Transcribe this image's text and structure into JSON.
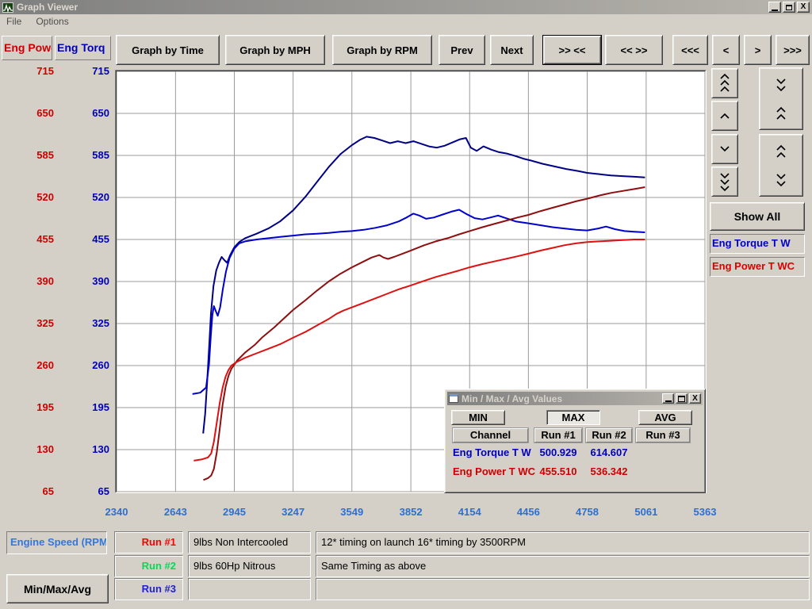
{
  "window": {
    "title": "Graph Viewer",
    "menu": [
      "File",
      "Options"
    ]
  },
  "channel_axes": {
    "power_label": "Eng Powe",
    "power_color": "#cc0000",
    "torque_label": "Eng Torq",
    "torque_color": "#0000bb"
  },
  "toolbar": [
    "Graph by Time",
    "Graph by MPH",
    "Graph by RPM",
    "Prev",
    "Next",
    ">> <<",
    "<< >>",
    "<<<",
    "<",
    ">",
    ">>>"
  ],
  "right_panel": {
    "show_all": "Show All",
    "torque_legend": "Eng Torque T W",
    "torque_color": "#0000cc",
    "power_legend": "Eng Power T WC",
    "power_color": "#dd0000"
  },
  "dialog": {
    "title": "Min / Max / Avg Values",
    "buttons": [
      "MIN",
      "MAX",
      "AVG"
    ],
    "active_button": "MAX",
    "headers": [
      "Channel",
      "Run #1",
      "Run #2",
      "Run #3"
    ],
    "rows": [
      {
        "channel": "Eng Torque T W",
        "color": "#0000bb",
        "run1": "500.929",
        "run2": "614.607",
        "run3": ""
      },
      {
        "channel": "Eng Power T WC",
        "color": "#cc0000",
        "run1": "455.510",
        "run2": "536.342",
        "run3": ""
      }
    ]
  },
  "bottom": {
    "x_channel_label": "Engine Speed (RPM",
    "x_channel_color": "#3377dd",
    "minmax_button": "Min/Max/Avg",
    "runs": [
      {
        "label": "Run #1",
        "color": "#ff0000",
        "desc": "9lbs Non Intercooled",
        "comment": "12* timing on launch 16* timing by 3500RPM"
      },
      {
        "label": "Run #2",
        "color": "#00dd55",
        "desc": "9lbs 60Hp Nitrous",
        "comment": "Same Timing as above"
      },
      {
        "label": "Run #3",
        "color": "#2222cc",
        "desc": "",
        "comment": ""
      }
    ]
  },
  "chart_data": {
    "type": "line",
    "xlabel": "Engine Speed (RPM)",
    "xlim": [
      2340,
      5363
    ],
    "ylim": [
      65,
      715
    ],
    "x_ticks": [
      2340,
      2643,
      2945,
      3247,
      3549,
      3852,
      4154,
      4456,
      4758,
      5061,
      5363
    ],
    "y_ticks": [
      65,
      130,
      195,
      260,
      325,
      390,
      455,
      520,
      585,
      650,
      715
    ],
    "x_tick_color": "#2d6fd0",
    "y_tick_color_power": "#cc0000",
    "y_tick_color_torque": "#0000bb",
    "grid_color": "#9b9b9b",
    "grid": true,
    "series": [
      {
        "name": "Run #2 Eng Torque T W",
        "color": "#000087",
        "max": 614.607,
        "points": [
          [
            2785,
            155
          ],
          [
            2795,
            185
          ],
          [
            2805,
            232
          ],
          [
            2815,
            286
          ],
          [
            2825,
            340
          ],
          [
            2838,
            383
          ],
          [
            2852,
            407
          ],
          [
            2866,
            419
          ],
          [
            2880,
            428
          ],
          [
            2894,
            423
          ],
          [
            2908,
            419
          ],
          [
            2924,
            431
          ],
          [
            2945,
            443
          ],
          [
            2970,
            451
          ],
          [
            3000,
            457
          ],
          [
            3060,
            464
          ],
          [
            3120,
            472
          ],
          [
            3180,
            483
          ],
          [
            3247,
            500
          ],
          [
            3310,
            521
          ],
          [
            3370,
            544
          ],
          [
            3430,
            567
          ],
          [
            3490,
            587
          ],
          [
            3549,
            601
          ],
          [
            3590,
            609
          ],
          [
            3625,
            614
          ],
          [
            3665,
            612
          ],
          [
            3705,
            608
          ],
          [
            3745,
            604
          ],
          [
            3785,
            607
          ],
          [
            3825,
            604
          ],
          [
            3865,
            607
          ],
          [
            3905,
            603
          ],
          [
            3945,
            599
          ],
          [
            3985,
            597
          ],
          [
            4025,
            600
          ],
          [
            4065,
            605
          ],
          [
            4105,
            610
          ],
          [
            4135,
            612
          ],
          [
            4160,
            597
          ],
          [
            4190,
            592
          ],
          [
            4225,
            599
          ],
          [
            4265,
            594
          ],
          [
            4305,
            590
          ],
          [
            4345,
            588
          ],
          [
            4390,
            584
          ],
          [
            4430,
            580
          ],
          [
            4470,
            577
          ],
          [
            4530,
            572
          ],
          [
            4590,
            568
          ],
          [
            4650,
            564
          ],
          [
            4710,
            561
          ],
          [
            4758,
            558
          ],
          [
            4820,
            556
          ],
          [
            4880,
            554
          ],
          [
            4940,
            553
          ],
          [
            5000,
            552
          ],
          [
            5055,
            551
          ]
        ]
      },
      {
        "name": "Run #1 Eng Torque T W",
        "color": "#0000cc",
        "max": 500.929,
        "points": [
          [
            2730,
            216
          ],
          [
            2770,
            218
          ],
          [
            2800,
            226
          ],
          [
            2815,
            262
          ],
          [
            2824,
            305
          ],
          [
            2832,
            338
          ],
          [
            2840,
            352
          ],
          [
            2850,
            344
          ],
          [
            2860,
            337
          ],
          [
            2872,
            350
          ],
          [
            2886,
            378
          ],
          [
            2902,
            405
          ],
          [
            2920,
            426
          ],
          [
            2945,
            441
          ],
          [
            2970,
            449
          ],
          [
            3000,
            452
          ],
          [
            3060,
            455
          ],
          [
            3120,
            457
          ],
          [
            3180,
            459
          ],
          [
            3247,
            461
          ],
          [
            3310,
            463
          ],
          [
            3370,
            464
          ],
          [
            3430,
            465
          ],
          [
            3490,
            467
          ],
          [
            3549,
            468
          ],
          [
            3610,
            470
          ],
          [
            3670,
            473
          ],
          [
            3730,
            477
          ],
          [
            3790,
            483
          ],
          [
            3830,
            489
          ],
          [
            3865,
            495
          ],
          [
            3895,
            492
          ],
          [
            3930,
            487
          ],
          [
            3970,
            489
          ],
          [
            4010,
            493
          ],
          [
            4060,
            498
          ],
          [
            4100,
            501
          ],
          [
            4140,
            494
          ],
          [
            4180,
            488
          ],
          [
            4220,
            486
          ],
          [
            4260,
            489
          ],
          [
            4300,
            492
          ],
          [
            4340,
            488
          ],
          [
            4390,
            483
          ],
          [
            4456,
            480
          ],
          [
            4520,
            477
          ],
          [
            4580,
            474
          ],
          [
            4640,
            472
          ],
          [
            4700,
            470
          ],
          [
            4758,
            469
          ],
          [
            4815,
            472
          ],
          [
            4855,
            475
          ],
          [
            4900,
            471
          ],
          [
            4950,
            468
          ],
          [
            5000,
            467
          ],
          [
            5055,
            466
          ]
        ]
      },
      {
        "name": "Run #2 Eng Power T WC",
        "color": "#8e0f0f",
        "max": 536.342,
        "points": [
          [
            2786,
            83
          ],
          [
            2810,
            86
          ],
          [
            2826,
            90
          ],
          [
            2840,
            100
          ],
          [
            2855,
            126
          ],
          [
            2870,
            162
          ],
          [
            2885,
            200
          ],
          [
            2900,
            227
          ],
          [
            2915,
            244
          ],
          [
            2930,
            255
          ],
          [
            2960,
            268
          ],
          [
            3000,
            280
          ],
          [
            3050,
            292
          ],
          [
            3090,
            304
          ],
          [
            3150,
            319
          ],
          [
            3200,
            333
          ],
          [
            3247,
            346
          ],
          [
            3310,
            361
          ],
          [
            3370,
            376
          ],
          [
            3430,
            390
          ],
          [
            3490,
            402
          ],
          [
            3549,
            412
          ],
          [
            3610,
            421
          ],
          [
            3650,
            427
          ],
          [
            3690,
            431
          ],
          [
            3712,
            427
          ],
          [
            3735,
            425
          ],
          [
            3765,
            428
          ],
          [
            3800,
            432
          ],
          [
            3852,
            438
          ],
          [
            3920,
            446
          ],
          [
            3980,
            452
          ],
          [
            4040,
            457
          ],
          [
            4100,
            463
          ],
          [
            4154,
            468
          ],
          [
            4220,
            474
          ],
          [
            4280,
            479
          ],
          [
            4340,
            484
          ],
          [
            4400,
            489
          ],
          [
            4456,
            493
          ],
          [
            4520,
            499
          ],
          [
            4580,
            504
          ],
          [
            4640,
            509
          ],
          [
            4700,
            514
          ],
          [
            4758,
            518
          ],
          [
            4820,
            523
          ],
          [
            4880,
            527
          ],
          [
            4940,
            530
          ],
          [
            5000,
            533
          ],
          [
            5055,
            536
          ]
        ]
      },
      {
        "name": "Run #1 Eng Power T WC",
        "color": "#dd1111",
        "max": 455.51,
        "points": [
          [
            2737,
            113
          ],
          [
            2780,
            115
          ],
          [
            2810,
            118
          ],
          [
            2826,
            124
          ],
          [
            2840,
            142
          ],
          [
            2855,
            172
          ],
          [
            2870,
            202
          ],
          [
            2885,
            226
          ],
          [
            2900,
            243
          ],
          [
            2915,
            253
          ],
          [
            2930,
            260
          ],
          [
            2960,
            266
          ],
          [
            3000,
            272
          ],
          [
            3060,
            279
          ],
          [
            3120,
            286
          ],
          [
            3180,
            293
          ],
          [
            3247,
            303
          ],
          [
            3310,
            312
          ],
          [
            3370,
            322
          ],
          [
            3430,
            332
          ],
          [
            3470,
            340
          ],
          [
            3505,
            345
          ],
          [
            3549,
            350
          ],
          [
            3610,
            357
          ],
          [
            3670,
            364
          ],
          [
            3730,
            371
          ],
          [
            3790,
            378
          ],
          [
            3852,
            384
          ],
          [
            3920,
            391
          ],
          [
            3980,
            397
          ],
          [
            4040,
            402
          ],
          [
            4100,
            407
          ],
          [
            4154,
            412
          ],
          [
            4220,
            417
          ],
          [
            4280,
            421
          ],
          [
            4340,
            425
          ],
          [
            4400,
            429
          ],
          [
            4456,
            433
          ],
          [
            4520,
            438
          ],
          [
            4580,
            442
          ],
          [
            4640,
            446
          ],
          [
            4700,
            449
          ],
          [
            4758,
            451
          ],
          [
            4820,
            452
          ],
          [
            4880,
            453
          ],
          [
            4940,
            454
          ],
          [
            5000,
            455
          ],
          [
            5055,
            455
          ]
        ]
      }
    ]
  }
}
